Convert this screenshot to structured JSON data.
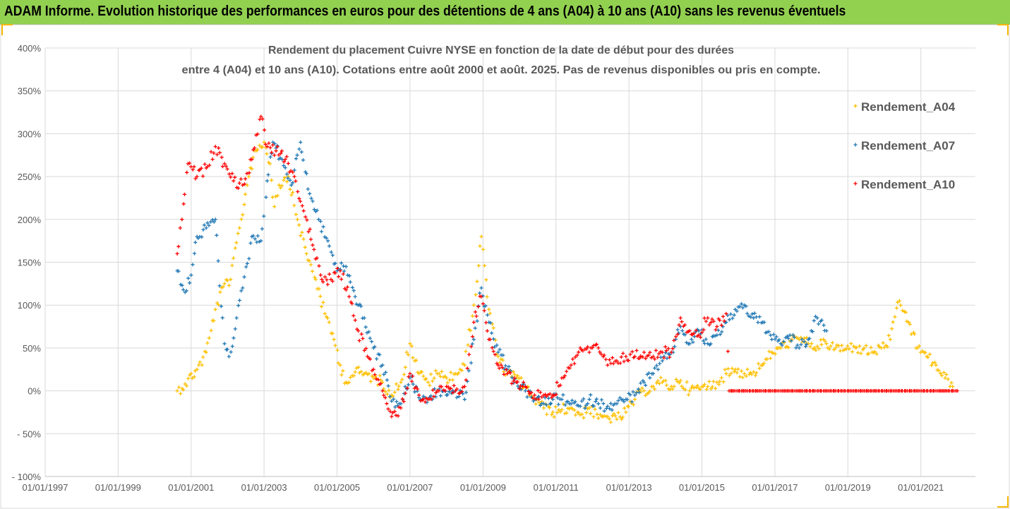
{
  "banner": {
    "title": "ADAM Informe. Evolution historique des performances en euros pour des détentions de 4 ans (A04) à 10 ans (A10) sans les revenus éventuels"
  },
  "colors": {
    "banner_bg": "#92d050",
    "A04": "#ffc000",
    "A07": "#1f77b4",
    "A10": "#ff0000",
    "grid": "#d9d9d9",
    "axis_text": "#595959",
    "frame_accent": "#f5b700"
  },
  "chart_data": {
    "type": "scatter",
    "title_line1": "Rendement du placement Cuivre NYSE en fonction de la date de début pour des durées",
    "title_line2": "entre 4 (A04) et 10 ans (A10). Cotations entre août 2000 et août. 2025. Pas de revenus disponibles ou pris en compte.",
    "marker": "+",
    "xlim": [
      "1997-01-01",
      "2022-07-01"
    ],
    "x_ticks": [
      "01/01/1997",
      "01/01/1999",
      "01/01/2001",
      "01/01/2003",
      "01/01/2005",
      "01/01/2007",
      "01/01/2009",
      "01/01/2011",
      "01/01/2013",
      "01/01/2015",
      "01/01/2017",
      "01/01/2019",
      "01/01/2021"
    ],
    "x_tick_dates": [
      "1997-01-01",
      "1999-01-01",
      "2001-01-01",
      "2003-01-01",
      "2005-01-01",
      "2007-01-01",
      "2009-01-01",
      "2011-01-01",
      "2013-01-01",
      "2015-01-01",
      "2017-01-01",
      "2019-01-01",
      "2021-01-01"
    ],
    "ylim": [
      -100,
      400
    ],
    "y_ticks": [
      400,
      350,
      300,
      250,
      200,
      150,
      100,
      50,
      0,
      -50,
      -100
    ],
    "y_tick_labels": [
      "400%",
      "350%",
      "300%",
      "250%",
      "200%",
      "150%",
      "100%",
      "50%",
      "0%",
      "- 50%",
      "- 100%"
    ],
    "grid": true,
    "legend_position": "top-right",
    "series": [
      {
        "name": "Rendement_A04",
        "color": "#ffc000",
        "points": [
          [
            "2000-08-15",
            0
          ],
          [
            "2000-11-01",
            8
          ],
          [
            "2001-03-01",
            25
          ],
          [
            "2001-06-01",
            45
          ],
          [
            "2001-09-01",
            95
          ],
          [
            "2001-12-01",
            125
          ],
          [
            "2002-02-01",
            130
          ],
          [
            "2002-05-01",
            190
          ],
          [
            "2002-08-01",
            250
          ],
          [
            "2002-10-01",
            280
          ],
          [
            "2003-01-01",
            290
          ],
          [
            "2003-03-01",
            265
          ],
          [
            "2003-04-15",
            215
          ],
          [
            "2003-06-01",
            240
          ],
          [
            "2003-09-01",
            250
          ],
          [
            "2003-12-01",
            200
          ],
          [
            "2004-03-01",
            160
          ],
          [
            "2004-06-01",
            130
          ],
          [
            "2004-09-01",
            90
          ],
          [
            "2004-12-01",
            60
          ],
          [
            "2005-02-01",
            30
          ],
          [
            "2005-04-01",
            10
          ],
          [
            "2005-07-01",
            22
          ],
          [
            "2005-10-01",
            20
          ],
          [
            "2006-01-01",
            15
          ],
          [
            "2006-04-01",
            10
          ],
          [
            "2006-07-01",
            -5
          ],
          [
            "2006-10-01",
            10
          ],
          [
            "2007-01-01",
            55
          ],
          [
            "2007-04-01",
            20
          ],
          [
            "2007-07-01",
            10
          ],
          [
            "2007-10-01",
            20
          ],
          [
            "2008-01-01",
            15
          ],
          [
            "2008-04-01",
            20
          ],
          [
            "2008-07-01",
            30
          ],
          [
            "2008-10-01",
            100
          ],
          [
            "2008-12-15",
            180
          ],
          [
            "2009-03-01",
            95
          ],
          [
            "2009-06-01",
            40
          ],
          [
            "2009-09-01",
            20
          ],
          [
            "2009-12-01",
            15
          ],
          [
            "2010-03-01",
            5
          ],
          [
            "2010-06-01",
            -10
          ],
          [
            "2010-09-01",
            -20
          ],
          [
            "2010-12-01",
            -25
          ],
          [
            "2011-03-01",
            -22
          ],
          [
            "2011-06-01",
            -20
          ],
          [
            "2011-09-01",
            -28
          ],
          [
            "2011-12-01",
            -20
          ],
          [
            "2012-03-01",
            -32
          ],
          [
            "2012-06-01",
            -30
          ],
          [
            "2012-09-01",
            -33
          ],
          [
            "2012-12-01",
            -25
          ],
          [
            "2013-03-01",
            -10
          ],
          [
            "2013-06-01",
            0
          ],
          [
            "2013-09-01",
            5
          ],
          [
            "2013-12-01",
            10
          ],
          [
            "2014-03-01",
            5
          ],
          [
            "2014-06-01",
            12
          ],
          [
            "2014-09-01",
            0
          ],
          [
            "2014-12-01",
            3
          ],
          [
            "2015-03-01",
            5
          ],
          [
            "2015-06-01",
            10
          ],
          [
            "2015-09-01",
            20
          ],
          [
            "2015-12-01",
            25
          ],
          [
            "2016-03-01",
            20
          ],
          [
            "2016-06-01",
            22
          ],
          [
            "2016-09-01",
            30
          ],
          [
            "2016-12-01",
            45
          ],
          [
            "2017-03-01",
            50
          ],
          [
            "2017-06-01",
            58
          ],
          [
            "2017-09-01",
            60
          ],
          [
            "2017-12-01",
            55
          ],
          [
            "2018-03-01",
            52
          ],
          [
            "2018-06-01",
            55
          ],
          [
            "2018-09-01",
            50
          ],
          [
            "2018-12-01",
            48
          ],
          [
            "2019-03-01",
            52
          ],
          [
            "2019-06-01",
            48
          ],
          [
            "2019-09-01",
            45
          ],
          [
            "2019-12-01",
            50
          ],
          [
            "2020-03-01",
            60
          ],
          [
            "2020-06-01",
            105
          ],
          [
            "2020-09-01",
            80
          ],
          [
            "2020-12-01",
            50
          ],
          [
            "2021-03-01",
            40
          ],
          [
            "2021-06-01",
            30
          ],
          [
            "2021-09-01",
            15
          ],
          [
            "2021-11-15",
            5
          ]
        ]
      },
      {
        "name": "Rendement_A07",
        "color": "#1f77b4",
        "points": [
          [
            "2000-08-15",
            140
          ],
          [
            "2000-11-01",
            115
          ],
          [
            "2001-01-01",
            135
          ],
          [
            "2001-03-01",
            180
          ],
          [
            "2001-06-01",
            190
          ],
          [
            "2001-09-01",
            200
          ],
          [
            "2001-12-01",
            55
          ],
          [
            "2002-01-15",
            40
          ],
          [
            "2002-04-01",
            85
          ],
          [
            "2002-06-01",
            120
          ],
          [
            "2002-09-01",
            180
          ],
          [
            "2002-12-01",
            175
          ],
          [
            "2003-02-01",
            245
          ],
          [
            "2003-04-01",
            290
          ],
          [
            "2003-07-01",
            270
          ],
          [
            "2003-10-01",
            240
          ],
          [
            "2004-01-01",
            290
          ],
          [
            "2004-04-01",
            230
          ],
          [
            "2004-07-01",
            200
          ],
          [
            "2004-10-01",
            175
          ],
          [
            "2005-01-01",
            140
          ],
          [
            "2005-04-01",
            145
          ],
          [
            "2005-07-01",
            110
          ],
          [
            "2005-10-01",
            85
          ],
          [
            "2006-01-01",
            50
          ],
          [
            "2006-04-01",
            30
          ],
          [
            "2006-07-01",
            -12
          ],
          [
            "2006-10-01",
            -15
          ],
          [
            "2007-01-01",
            15
          ],
          [
            "2007-04-01",
            -8
          ],
          [
            "2007-07-01",
            -10
          ],
          [
            "2007-10-01",
            0
          ],
          [
            "2008-01-01",
            -5
          ],
          [
            "2008-04-01",
            0
          ],
          [
            "2008-07-01",
            -10
          ],
          [
            "2008-10-01",
            60
          ],
          [
            "2008-12-15",
            120
          ],
          [
            "2009-03-01",
            80
          ],
          [
            "2009-06-01",
            45
          ],
          [
            "2009-09-01",
            25
          ],
          [
            "2009-12-01",
            10
          ],
          [
            "2010-03-01",
            0
          ],
          [
            "2010-06-01",
            -10
          ],
          [
            "2010-09-01",
            -15
          ],
          [
            "2010-12-01",
            -10
          ],
          [
            "2011-03-01",
            -10
          ],
          [
            "2011-06-01",
            -15
          ],
          [
            "2011-09-01",
            -18
          ],
          [
            "2011-12-01",
            -10
          ],
          [
            "2012-03-01",
            -15
          ],
          [
            "2012-06-01",
            -18
          ],
          [
            "2012-09-01",
            -15
          ],
          [
            "2012-12-01",
            -10
          ],
          [
            "2013-03-01",
            -5
          ],
          [
            "2013-06-01",
            10
          ],
          [
            "2013-09-01",
            20
          ],
          [
            "2013-12-01",
            35
          ],
          [
            "2014-03-01",
            45
          ],
          [
            "2014-06-01",
            75
          ],
          [
            "2014-09-01",
            55
          ],
          [
            "2014-12-01",
            70
          ],
          [
            "2015-03-01",
            55
          ],
          [
            "2015-06-01",
            65
          ],
          [
            "2015-09-01",
            80
          ],
          [
            "2015-12-01",
            95
          ],
          [
            "2016-03-01",
            100
          ],
          [
            "2016-06-01",
            85
          ],
          [
            "2016-09-01",
            80
          ],
          [
            "2016-12-01",
            60
          ],
          [
            "2017-03-01",
            55
          ],
          [
            "2017-06-01",
            65
          ],
          [
            "2017-09-01",
            50
          ],
          [
            "2017-12-01",
            60
          ],
          [
            "2018-03-01",
            85
          ],
          [
            "2018-06-01",
            70
          ]
        ]
      },
      {
        "name": "Rendement_A10",
        "color": "#ff0000",
        "points": [
          [
            "2000-08-15",
            160
          ],
          [
            "2000-10-01",
            200
          ],
          [
            "2000-12-01",
            265
          ],
          [
            "2001-03-01",
            250
          ],
          [
            "2001-06-01",
            260
          ],
          [
            "2001-09-01",
            285
          ],
          [
            "2001-12-01",
            265
          ],
          [
            "2002-03-01",
            245
          ],
          [
            "2002-06-01",
            240
          ],
          [
            "2002-09-01",
            270
          ],
          [
            "2002-12-01",
            320
          ],
          [
            "2003-02-01",
            285
          ],
          [
            "2003-05-01",
            280
          ],
          [
            "2003-08-01",
            270
          ],
          [
            "2003-11-01",
            250
          ],
          [
            "2004-02-01",
            210
          ],
          [
            "2004-05-01",
            170
          ],
          [
            "2004-08-01",
            130
          ],
          [
            "2004-11-01",
            130
          ],
          [
            "2005-02-01",
            140
          ],
          [
            "2005-05-01",
            110
          ],
          [
            "2005-08-01",
            70
          ],
          [
            "2005-11-01",
            40
          ],
          [
            "2006-01-01",
            25
          ],
          [
            "2006-04-01",
            0
          ],
          [
            "2006-07-01",
            -30
          ],
          [
            "2006-10-01",
            -20
          ],
          [
            "2007-01-01",
            20
          ],
          [
            "2007-04-01",
            -5
          ],
          [
            "2007-07-01",
            -10
          ],
          [
            "2007-10-01",
            0
          ],
          [
            "2008-01-01",
            5
          ],
          [
            "2008-04-01",
            0
          ],
          [
            "2008-07-01",
            5
          ],
          [
            "2008-10-01",
            80
          ],
          [
            "2008-12-15",
            110
          ],
          [
            "2009-03-01",
            60
          ],
          [
            "2009-06-01",
            30
          ],
          [
            "2009-09-01",
            20
          ],
          [
            "2009-12-01",
            10
          ],
          [
            "2010-03-01",
            5
          ],
          [
            "2010-06-01",
            -5
          ],
          [
            "2010-09-01",
            -5
          ],
          [
            "2010-12-01",
            -5
          ],
          [
            "2011-03-01",
            15
          ],
          [
            "2011-06-01",
            30
          ],
          [
            "2011-09-01",
            50
          ],
          [
            "2011-12-01",
            45
          ],
          [
            "2012-03-01",
            50
          ],
          [
            "2012-06-01",
            30
          ],
          [
            "2012-09-01",
            35
          ],
          [
            "2012-12-01",
            40
          ],
          [
            "2013-03-01",
            40
          ],
          [
            "2013-06-01",
            45
          ],
          [
            "2013-09-01",
            40
          ],
          [
            "2013-12-01",
            45
          ],
          [
            "2014-03-01",
            45
          ],
          [
            "2014-06-01",
            85
          ],
          [
            "2014-09-01",
            70
          ],
          [
            "2014-12-01",
            65
          ],
          [
            "2015-03-01",
            85
          ],
          [
            "2015-06-01",
            75
          ],
          [
            "2015-09-01",
            90
          ],
          [
            "2015-10-01",
            0
          ],
          [
            "2016-06-01",
            0
          ],
          [
            "2017-06-01",
            0
          ],
          [
            "2018-06-01",
            0
          ],
          [
            "2019-06-01",
            0
          ],
          [
            "2020-06-01",
            0
          ],
          [
            "2021-06-01",
            0
          ],
          [
            "2022-01-01",
            0
          ]
        ]
      }
    ]
  }
}
